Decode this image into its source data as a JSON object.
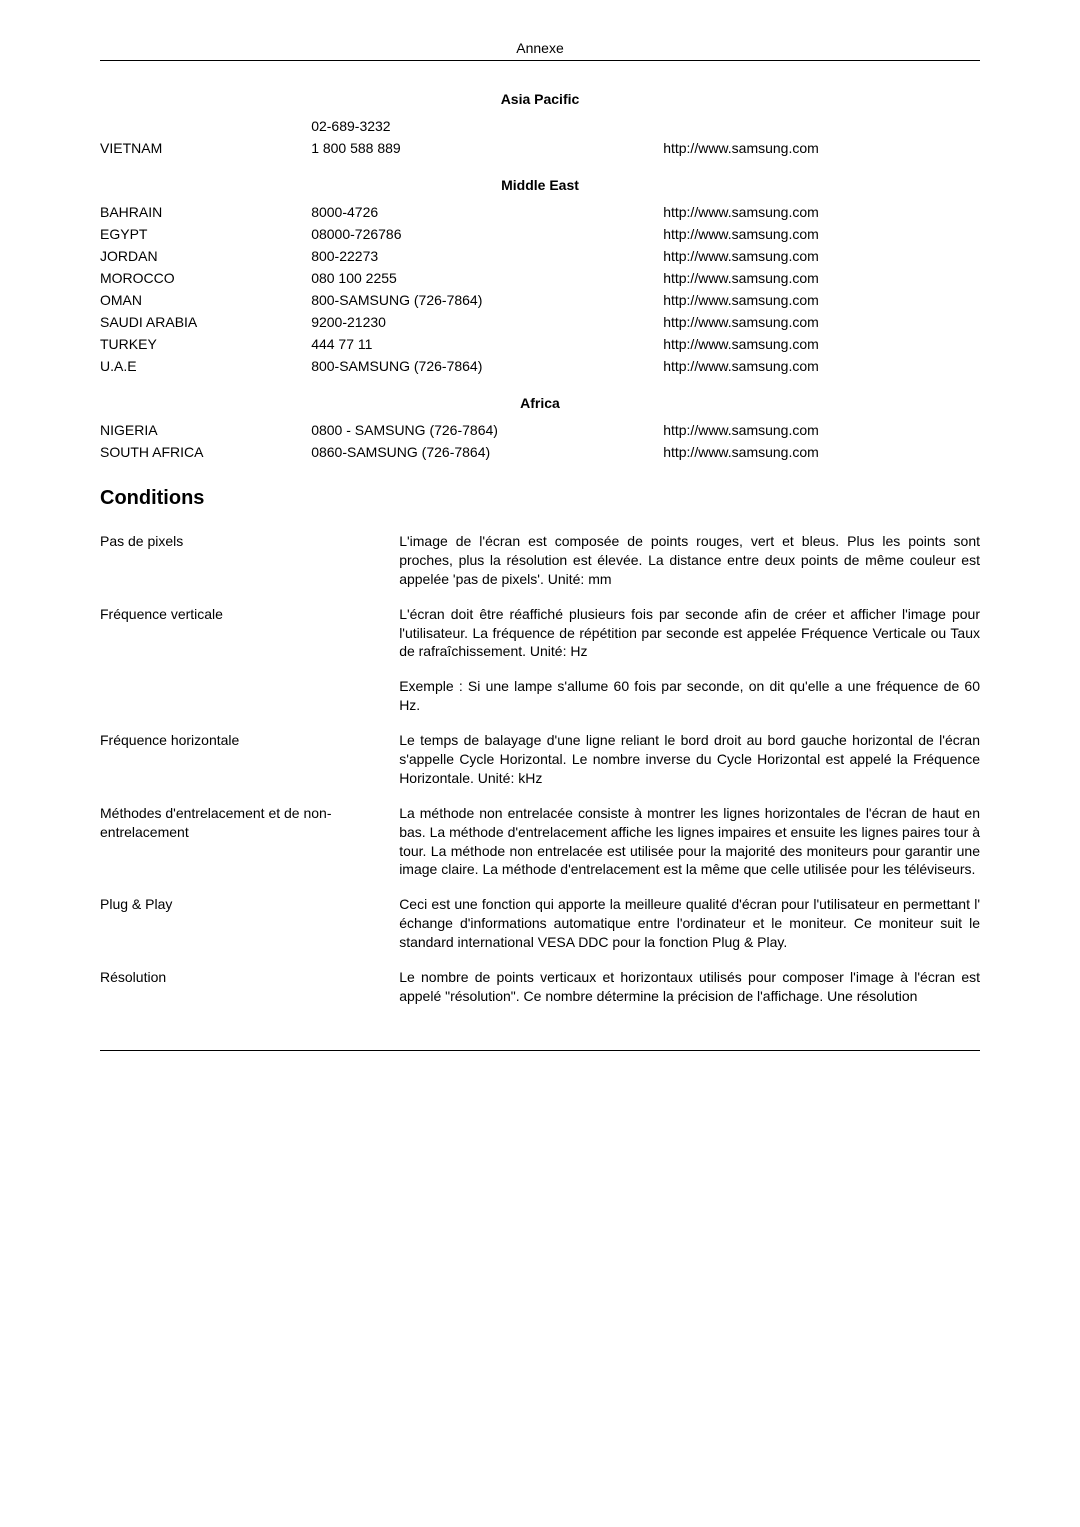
{
  "page": {
    "header_center": "Annexe"
  },
  "asiaPacific": {
    "title": "Asia Pacific",
    "preNumber": "02-689-3232",
    "rows": [
      {
        "country": "VIETNAM",
        "num": "1 800 588 889",
        "url": "http://www.samsung.com"
      }
    ]
  },
  "middleEast": {
    "title": "Middle East",
    "rows": [
      {
        "country": "BAHRAIN",
        "num": "8000-4726",
        "url": "http://www.samsung.com"
      },
      {
        "country": "EGYPT",
        "num": "08000-726786",
        "url": "http://www.samsung.com"
      },
      {
        "country": "JORDAN",
        "num": "800-22273",
        "url": "http://www.samsung.com"
      },
      {
        "country": "MOROCCO",
        "num": "080 100 2255",
        "url": "http://www.samsung.com"
      },
      {
        "country": "OMAN",
        "num": "800-SAMSUNG (726-7864)",
        "url": "http://www.samsung.com"
      },
      {
        "country": "SAUDI ARABIA",
        "num": "9200-21230",
        "url": "http://www.samsung.com"
      },
      {
        "country": "TURKEY",
        "num": "444 77 11",
        "url": "http://www.samsung.com"
      },
      {
        "country": "U.A.E",
        "num": "800-SAMSUNG (726-7864)",
        "url": "http://www.samsung.com"
      }
    ]
  },
  "africa": {
    "title": "Africa",
    "rows": [
      {
        "country": "NIGERIA",
        "num": "0800 - SAMSUNG (726-7864)",
        "url": "http://www.samsung.com"
      },
      {
        "country": "SOUTH AFRICA",
        "num": "0860-SAMSUNG (726-7864)",
        "url": "http://www.samsung.com"
      }
    ]
  },
  "conditions": {
    "heading": "Conditions",
    "items": [
      {
        "label": "Pas de pixels",
        "body": "L'image de l'écran est composée de points rouges, vert et bleus. Plus les points sont proches, plus la résolution est élevée. La distance entre deux points de même couleur est appelée 'pas de pixels'. Unité: mm"
      },
      {
        "label": "Fréquence verticale",
        "body": "L'écran doit être réaffiché plusieurs fois par seconde afin de créer et afficher l'image pour l'utilisateur. La fréquence de répétition par seconde est appelée Fréquence Verticale ou Taux de rafraîchissement. Unité: Hz"
      },
      {
        "label": "",
        "body": "Exemple : Si une lampe s'allume 60 fois par seconde, on dit qu'elle a une fréquence de 60 Hz."
      },
      {
        "label": "Fréquence horizontale",
        "body": "Le temps de balayage d'une ligne reliant le bord droit au bord gauche horizontal de l'écran s'appelle Cycle Horizontal. Le nombre inverse du Cycle Horizontal est appelé la Fréquence Horizontale. Unité: kHz"
      },
      {
        "label": "Méthodes d'entrelacement et de non-entrelacement",
        "body": "La méthode non entrelacée consiste à montrer les lignes horizontales de l'écran de haut en bas. La méthode d'entrelacement affiche les lignes impaires et ensuite les lignes paires tour à tour. La méthode non entrelacée est utilisée pour la majorité des moniteurs pour garantir une image claire. La méthode d'entrelacement est la même que celle utilisée pour les téléviseurs."
      },
      {
        "label": "Plug & Play",
        "body": "Ceci est une fonction qui apporte la meilleure qualité d'écran pour l'utilisateur en permettant l' échange d'informations automatique entre l'ordinateur et le moniteur. Ce moniteur suit le standard international VESA DDC pour la fonction Plug & Play."
      },
      {
        "label": "Résolution",
        "body": "Le nombre de points verticaux et horizontaux utilisés pour composer l'image à l'écran est appelé \"résolution\". Ce nombre détermine la précision de l'affichage. Une résolution"
      }
    ]
  }
}
